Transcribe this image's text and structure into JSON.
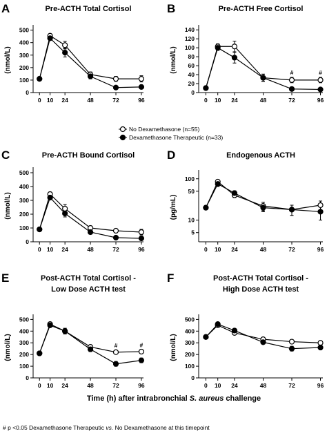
{
  "chart_data": [
    {
      "type": "line",
      "label": "A",
      "title": [
        "Pre-ACTH Total Cortisol"
      ],
      "ylabel": "(nmol/L)",
      "x": [
        0,
        10,
        24,
        48,
        72,
        96
      ],
      "xlim": [
        -6,
        98
      ],
      "xticks": [
        0,
        10,
        24,
        48,
        72,
        96
      ],
      "ylim": [
        0,
        520
      ],
      "yticks": [
        0,
        100,
        200,
        300,
        400,
        500
      ],
      "series": [
        {
          "name": "No Dexamethasone (n=55)",
          "color": "#000000",
          "fill": "#ffffff",
          "values": [
            110,
            455,
            380,
            145,
            110,
            110
          ],
          "errors": [
            10,
            15,
            30,
            20,
            20,
            25
          ]
        },
        {
          "name": "Dexamethasone Therapeutic (n=33)",
          "color": "#000000",
          "fill": "#000000",
          "values": [
            110,
            435,
            320,
            130,
            40,
            45
          ],
          "errors": [
            10,
            15,
            35,
            20,
            15,
            15
          ]
        }
      ],
      "annotations": []
    },
    {
      "type": "line",
      "label": "B",
      "title": [
        "Pre-ACTH Free Cortisol"
      ],
      "ylabel": "(nmol/L)",
      "x": [
        0,
        10,
        24,
        48,
        72,
        96
      ],
      "xlim": [
        -6,
        98
      ],
      "xticks": [
        0,
        10,
        24,
        48,
        72,
        96
      ],
      "ylim": [
        0,
        145
      ],
      "yticks": [
        0,
        20,
        40,
        60,
        80,
        100,
        120,
        140
      ],
      "series": [
        {
          "color": "#000000",
          "fill": "#ffffff",
          "values": [
            10,
            103,
            103,
            33,
            28,
            28
          ],
          "errors": [
            2,
            6,
            12,
            8,
            6,
            6
          ]
        },
        {
          "color": "#000000",
          "fill": "#000000",
          "values": [
            10,
            100,
            78,
            33,
            8,
            7
          ],
          "errors": [
            2,
            6,
            12,
            8,
            3,
            2
          ]
        }
      ],
      "annotations": [
        {
          "x": 72,
          "text": "#"
        },
        {
          "x": 96,
          "text": "#"
        }
      ]
    },
    {
      "type": "line",
      "label": "C",
      "title": [
        "Pre-ACTH Bound Cortisol"
      ],
      "ylabel": "(nmol/L)",
      "x": [
        0,
        10,
        24,
        48,
        72,
        96
      ],
      "xlim": [
        -6,
        98
      ],
      "xticks": [
        0,
        10,
        24,
        48,
        72,
        96
      ],
      "ylim": [
        0,
        520
      ],
      "yticks": [
        0,
        100,
        200,
        300,
        400,
        500
      ],
      "series": [
        {
          "color": "#000000",
          "fill": "#ffffff",
          "values": [
            90,
            345,
            240,
            100,
            80,
            70
          ],
          "errors": [
            5,
            15,
            30,
            15,
            15,
            20
          ]
        },
        {
          "color": "#000000",
          "fill": "#000000",
          "values": [
            90,
            320,
            205,
            70,
            30,
            25
          ],
          "errors": [
            5,
            15,
            25,
            15,
            10,
            10
          ]
        }
      ],
      "annotations": []
    },
    {
      "type": "line",
      "label": "D",
      "title": [
        "Endogenous ACTH"
      ],
      "ylabel": "(pg/mL)",
      "log": true,
      "x": [
        0,
        10,
        24,
        48,
        72,
        96
      ],
      "xlim": [
        -6,
        98
      ],
      "xticks": [
        0,
        10,
        24,
        48,
        72,
        96
      ],
      "ylim": [
        3,
        140
      ],
      "yticks": [
        5,
        10,
        50,
        100
      ],
      "series": [
        {
          "color": "#000000",
          "fill": "#ffffff",
          "values": [
            20,
            85,
            40,
            22,
            18,
            23
          ],
          "errors": [
            1,
            10,
            5,
            5,
            5,
            6
          ]
        },
        {
          "color": "#000000",
          "fill": "#000000",
          "values": [
            20,
            75,
            45,
            20,
            18,
            16
          ],
          "errors": [
            1,
            10,
            6,
            4,
            5,
            6
          ]
        }
      ],
      "annotations": []
    },
    {
      "type": "line",
      "label": "E",
      "title": [
        "Post-ACTH Total Cortisol -",
        "Low Dose ACTH test"
      ],
      "ylabel": "(nmol/L)",
      "x": [
        0,
        10,
        24,
        48,
        72,
        96
      ],
      "xlim": [
        -6,
        98
      ],
      "xticks": [
        0,
        10,
        24,
        48,
        72,
        96
      ],
      "ylim": [
        0,
        520
      ],
      "yticks": [
        0,
        100,
        200,
        300,
        400,
        500
      ],
      "series": [
        {
          "color": "#000000",
          "fill": "#ffffff",
          "values": [
            210,
            460,
            400,
            265,
            220,
            225
          ],
          "errors": [
            5,
            15,
            20,
            15,
            15,
            15
          ]
        },
        {
          "color": "#000000",
          "fill": "#000000",
          "values": [
            210,
            450,
            400,
            245,
            120,
            150
          ],
          "errors": [
            5,
            15,
            25,
            20,
            20,
            20
          ]
        }
      ],
      "annotations": [
        {
          "x": 72,
          "text": "#"
        },
        {
          "x": 96,
          "text": "#"
        }
      ]
    },
    {
      "type": "line",
      "label": "F",
      "title": [
        "Post-ACTH Total Cortisol -",
        "High Dose ACTH test"
      ],
      "ylabel": "(nmol/L)",
      "x": [
        0,
        10,
        24,
        48,
        72,
        96
      ],
      "xlim": [
        -6,
        98
      ],
      "xticks": [
        0,
        10,
        24,
        48,
        72,
        96
      ],
      "ylim": [
        0,
        520
      ],
      "yticks": [
        0,
        100,
        200,
        300,
        400,
        500
      ],
      "series": [
        {
          "color": "#000000",
          "fill": "#ffffff",
          "values": [
            350,
            450,
            385,
            330,
            310,
            300
          ],
          "errors": [
            5,
            10,
            15,
            15,
            15,
            10
          ]
        },
        {
          "color": "#000000",
          "fill": "#000000",
          "values": [
            350,
            460,
            405,
            305,
            250,
            260
          ],
          "errors": [
            5,
            10,
            15,
            10,
            20,
            20
          ]
        }
      ],
      "annotations": []
    }
  ],
  "x_label": [
    "Time (h) after intrabronchial ",
    "S. aureus",
    " challenge"
  ],
  "footnote": [
    "# p <0.05 Dexamethasone Therapeutic ",
    "vs.",
    " No Dexamethasone at this timepoint"
  ]
}
